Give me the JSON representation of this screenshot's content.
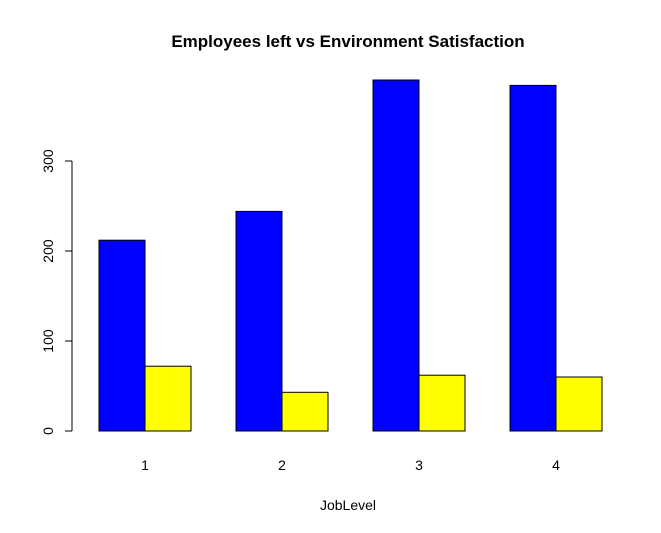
{
  "chart_data": {
    "type": "bar",
    "title": "Employees left vs Environment Satisfaction",
    "xlabel": "JobLevel",
    "ylabel": "",
    "categories": [
      "1",
      "2",
      "3",
      "4"
    ],
    "series": [
      {
        "values": [
          212,
          244,
          390,
          384
        ],
        "color": "#0000ff"
      },
      {
        "values": [
          72,
          43,
          62,
          60
        ],
        "color": "#ffff00"
      }
    ],
    "yticks": [
      "0",
      "100",
      "200",
      "300"
    ],
    "ylim": [
      0,
      390
    ],
    "grid": false,
    "legend": "none"
  }
}
